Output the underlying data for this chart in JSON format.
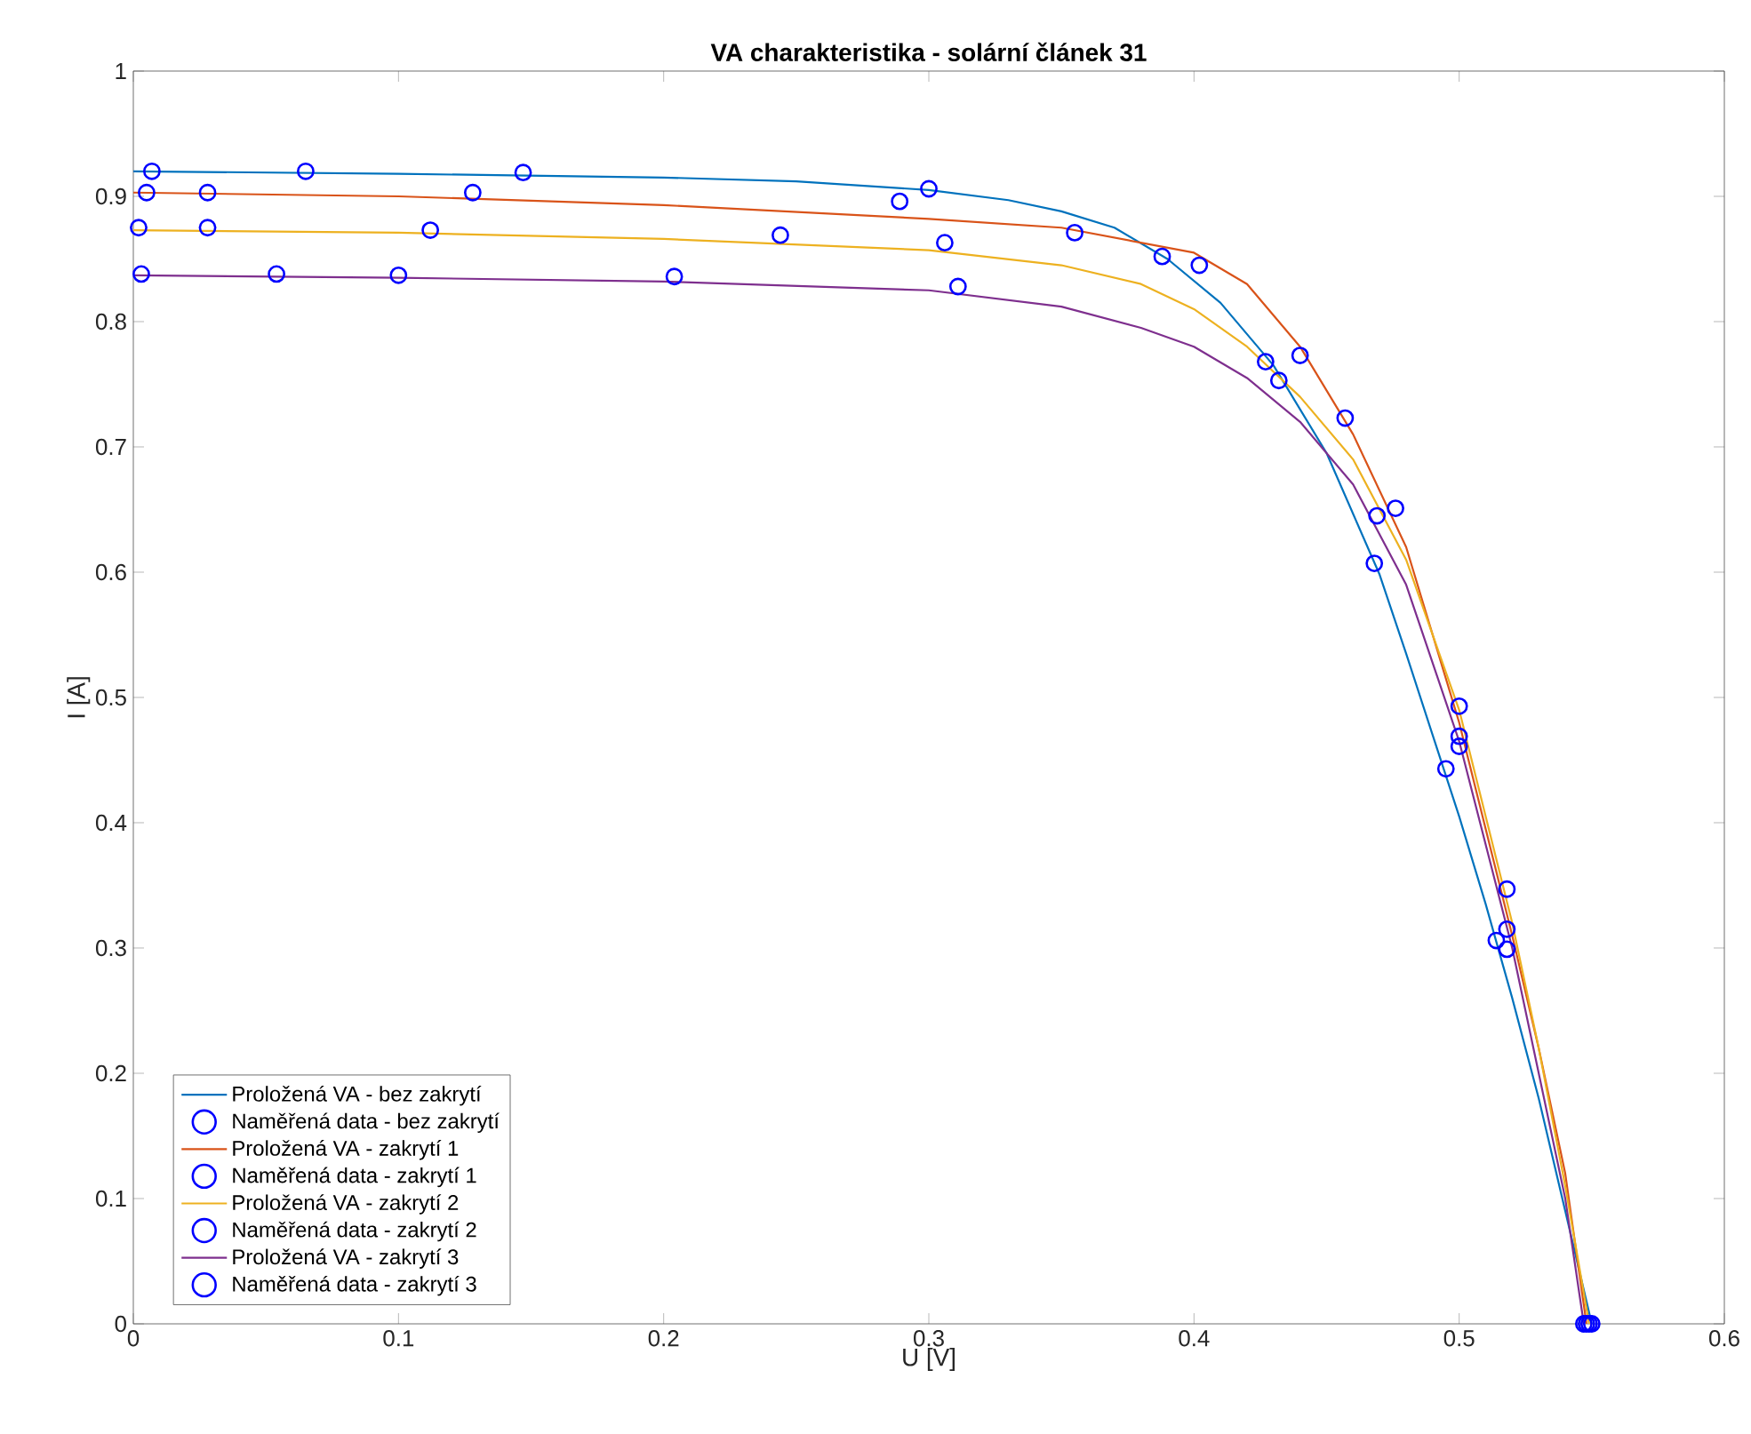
{
  "chart_data": {
    "type": "line",
    "title": "VA charakteristika - solární článek 31",
    "xlabel": "U [V]",
    "ylabel": "I [A]",
    "xlim": [
      0,
      0.6
    ],
    "ylim": [
      0,
      1
    ],
    "xticks": [
      0,
      0.1,
      0.2,
      0.3,
      0.4,
      0.5,
      0.6
    ],
    "yticks": [
      0,
      0.1,
      0.2,
      0.3,
      0.4,
      0.5,
      0.6,
      0.7,
      0.8,
      0.9,
      1
    ],
    "legend": "bottom left",
    "grid": false,
    "series": [
      {
        "name": "Proložená VA - bez zakrytí",
        "marker": "none",
        "color": "#0072bd",
        "x": [
          0,
          0.1,
          0.2,
          0.25,
          0.3,
          0.33,
          0.35,
          0.37,
          0.39,
          0.41,
          0.43,
          0.45,
          0.47,
          0.48,
          0.49,
          0.5,
          0.51,
          0.52,
          0.53,
          0.54,
          0.55
        ],
        "values": [
          0.92,
          0.918,
          0.915,
          0.912,
          0.905,
          0.897,
          0.888,
          0.875,
          0.85,
          0.815,
          0.765,
          0.695,
          0.598,
          0.535,
          0.47,
          0.405,
          0.335,
          0.26,
          0.18,
          0.09,
          0
        ]
      },
      {
        "name": "Naměřená data - bez zakrytí",
        "type": "scatter",
        "marker": "circle",
        "color": "#0000ff",
        "x": [
          0.007,
          0.065,
          0.147,
          0.3,
          0.388,
          0.427,
          0.468,
          0.495,
          0.514,
          0.55
        ],
        "values": [
          0.92,
          0.92,
          0.919,
          0.906,
          0.852,
          0.768,
          0.607,
          0.443,
          0.306,
          0
        ]
      },
      {
        "name": "Proložená VA - zakrytí 1",
        "marker": "none",
        "color": "#d95319",
        "x": [
          0,
          0.1,
          0.2,
          0.3,
          0.35,
          0.4,
          0.42,
          0.44,
          0.46,
          0.48,
          0.5,
          0.52,
          0.53,
          0.54,
          0.548
        ],
        "values": [
          0.903,
          0.9,
          0.893,
          0.882,
          0.875,
          0.855,
          0.83,
          0.78,
          0.71,
          0.62,
          0.48,
          0.31,
          0.22,
          0.12,
          0
        ]
      },
      {
        "name": "Naměřená data - zakrytí 1",
        "type": "scatter",
        "marker": "circle",
        "color": "#0000ff",
        "x": [
          0.005,
          0.028,
          0.128,
          0.289,
          0.355,
          0.402,
          0.44,
          0.469,
          0.5,
          0.518,
          0.548
        ],
        "values": [
          0.903,
          0.903,
          0.903,
          0.896,
          0.871,
          0.845,
          0.773,
          0.645,
          0.469,
          0.315,
          0
        ]
      },
      {
        "name": "Proložená VA - zakrytí 2",
        "marker": "none",
        "color": "#edb120",
        "x": [
          0,
          0.1,
          0.2,
          0.3,
          0.35,
          0.38,
          0.4,
          0.42,
          0.44,
          0.46,
          0.48,
          0.5,
          0.52,
          0.53,
          0.54,
          0.549
        ],
        "values": [
          0.873,
          0.871,
          0.866,
          0.857,
          0.845,
          0.83,
          0.81,
          0.78,
          0.74,
          0.69,
          0.61,
          0.49,
          0.32,
          0.22,
          0.11,
          0
        ]
      },
      {
        "name": "Naměřená data - zakrytí 2",
        "type": "scatter",
        "marker": "circle",
        "color": "#0000ff",
        "x": [
          0.002,
          0.028,
          0.112,
          0.244,
          0.306,
          0.457,
          0.476,
          0.5,
          0.518,
          0.549
        ],
        "values": [
          0.875,
          0.875,
          0.873,
          0.869,
          0.863,
          0.723,
          0.651,
          0.493,
          0.347,
          0
        ]
      },
      {
        "name": "Proložená VA - zakrytí 3",
        "marker": "none",
        "color": "#7e2f8e",
        "x": [
          0,
          0.1,
          0.2,
          0.3,
          0.35,
          0.38,
          0.4,
          0.42,
          0.44,
          0.46,
          0.48,
          0.5,
          0.52,
          0.53,
          0.54,
          0.547
        ],
        "values": [
          0.837,
          0.835,
          0.832,
          0.825,
          0.812,
          0.795,
          0.78,
          0.755,
          0.72,
          0.67,
          0.59,
          0.465,
          0.3,
          0.2,
          0.1,
          0
        ]
      },
      {
        "name": "Naměřená data - zakrytí 3",
        "type": "scatter",
        "marker": "circle",
        "color": "#0000ff",
        "x": [
          0.003,
          0.054,
          0.1,
          0.204,
          0.311,
          0.432,
          0.5,
          0.518,
          0.547
        ],
        "values": [
          0.838,
          0.838,
          0.837,
          0.836,
          0.828,
          0.753,
          0.461,
          0.299,
          0
        ]
      }
    ]
  }
}
